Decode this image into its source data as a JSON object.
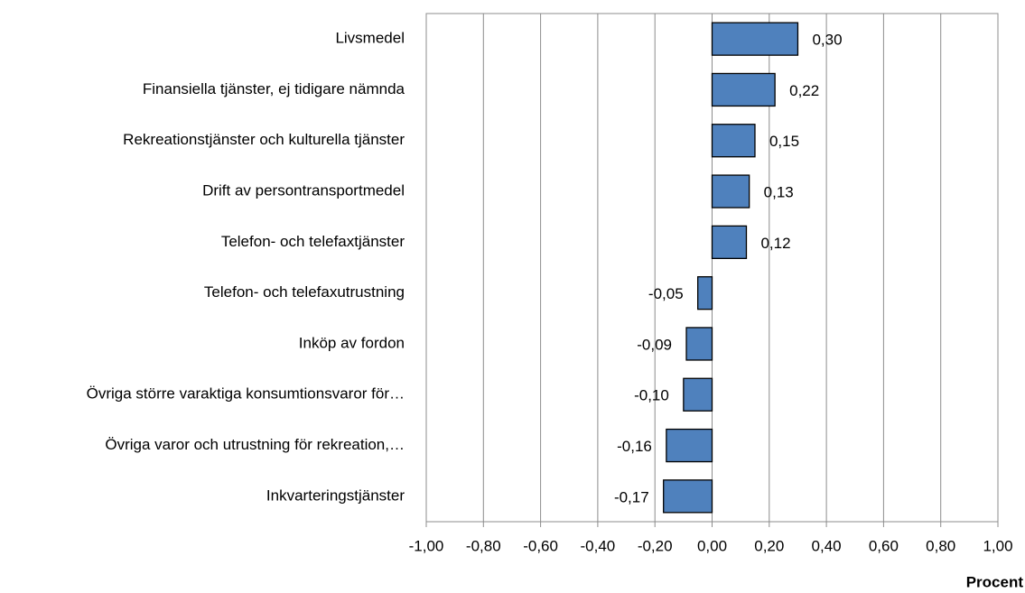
{
  "chart_data": {
    "type": "bar",
    "orientation": "horizontal",
    "categories": [
      "Livsmedel",
      "Finansiella tjänster, ej tidigare nämnda",
      "Rekreationstjänster och kulturella tjänster",
      "Drift av persontransportmedel",
      "Telefon- och telefaxtjänster",
      "Telefon- och telefaxutrustning",
      "Inköp av fordon",
      "Övriga större varaktiga konsumtionsvaror för…",
      "Övriga varor och utrustning för rekreation,…",
      "Inkvarteringstjänster"
    ],
    "values": [
      0.3,
      0.22,
      0.15,
      0.13,
      0.12,
      -0.05,
      -0.09,
      -0.1,
      -0.16,
      -0.17
    ],
    "value_labels": [
      "0,30",
      "0,22",
      "0,15",
      "0,13",
      "0,12",
      "-0,05",
      "-0,09",
      "-0,10",
      "-0,16",
      "-0,17"
    ],
    "color": "#4f81bd",
    "xlim": [
      -1,
      1
    ],
    "xticks": [
      {
        "value": -1,
        "label": "-1,00"
      },
      {
        "value": -0.8,
        "label": "-0,80"
      },
      {
        "value": -0.6,
        "label": "-0,60"
      },
      {
        "value": -0.4,
        "label": "-0,40"
      },
      {
        "value": -0.2,
        "label": "-0,20"
      },
      {
        "value": 0,
        "label": "0,00"
      },
      {
        "value": 0.2,
        "label": "0,20"
      },
      {
        "value": 0.4,
        "label": "0,40"
      },
      {
        "value": 0.6,
        "label": "0,60"
      },
      {
        "value": 0.8,
        "label": "0,80"
      },
      {
        "value": 1,
        "label": "1,00"
      }
    ],
    "xlabel": "Procent",
    "grid": true
  }
}
